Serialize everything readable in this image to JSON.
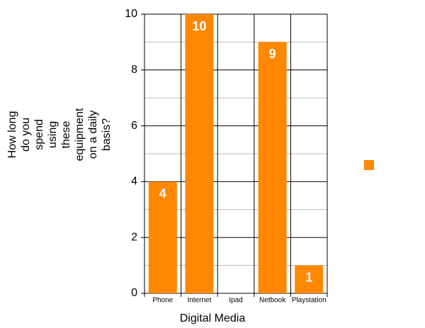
{
  "chart_data": {
    "type": "bar",
    "x_label": "Digital Media",
    "y_label": [
      "How long",
      "do you",
      "spend",
      "using",
      "these",
      "equipment",
      "on a daily",
      "basis?"
    ],
    "categories": [
      "Phone",
      "Internet",
      "Ipad",
      "Netbook",
      "Playstation"
    ],
    "values": [
      4,
      10,
      null,
      9,
      1
    ],
    "color": "#ff8800",
    "ylim": [
      0,
      10
    ],
    "yticks": [
      0,
      2,
      4,
      6,
      8,
      10
    ],
    "minor_yticks": [
      1,
      3,
      5,
      7,
      9
    ],
    "grid": true,
    "legend": "right"
  }
}
